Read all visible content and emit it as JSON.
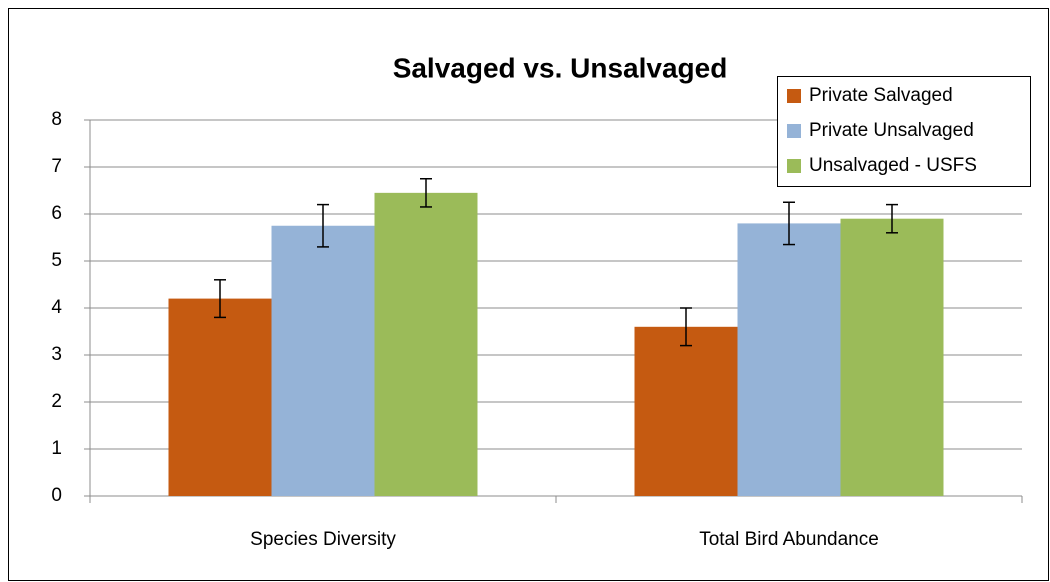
{
  "chart_data": {
    "type": "bar",
    "title": "Salvaged vs. Unsalvaged",
    "categories": [
      "Species Diversity",
      "Total Bird Abundance"
    ],
    "series": [
      {
        "name": "Private Salvaged",
        "color": "#c55a11",
        "values": [
          4.2,
          3.6
        ],
        "errors": [
          0.4,
          0.4
        ]
      },
      {
        "name": "Private Unsalvaged",
        "color": "#95b3d7",
        "values": [
          5.75,
          5.8
        ],
        "errors": [
          0.45,
          0.45
        ]
      },
      {
        "name": "Unsalvaged - USFS",
        "color": "#9bbb59",
        "values": [
          6.45,
          5.9
        ],
        "errors": [
          0.3,
          0.3
        ]
      }
    ],
    "ylim": [
      0,
      8
    ],
    "yticks": [
      0,
      1,
      2,
      3,
      4,
      5,
      6,
      7,
      8
    ],
    "grid": true,
    "legend": "top-right"
  }
}
